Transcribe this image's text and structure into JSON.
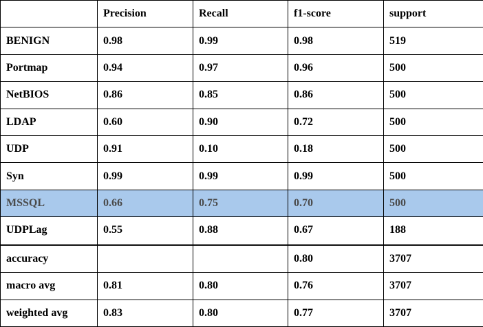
{
  "header": {
    "label": "",
    "precision": "Precision",
    "recall": "Recall",
    "f1": "f1-score",
    "support": "support"
  },
  "rows": [
    {
      "label": "BENIGN",
      "precision": "0.98",
      "recall": "0.99",
      "f1": "0.98",
      "support": "519"
    },
    {
      "label": "Portmap",
      "precision": "0.94",
      "recall": "0.97",
      "f1": "0.96",
      "support": "500"
    },
    {
      "label": "NetBIOS",
      "precision": "0.86",
      "recall": "0.85",
      "f1": "0.86",
      "support": "500"
    },
    {
      "label": "LDAP",
      "precision": "0.60",
      "recall": "0.90",
      "f1": "0.72",
      "support": "500"
    },
    {
      "label": "UDP",
      "precision": "0.91",
      "recall": "0.10",
      "f1": "0.18",
      "support": "500"
    },
    {
      "label": "Syn",
      "precision": "0.99",
      "recall": "0.99",
      "f1": "0.99",
      "support": "500"
    },
    {
      "label": "MSSQL",
      "precision": "0.66",
      "recall": "0.75",
      "f1": "0.70",
      "support": "500",
      "highlighted": true
    },
    {
      "label": "UDPLag",
      "precision": "0.55",
      "recall": "0.88",
      "f1": "0.67",
      "support": "188"
    },
    {
      "label": "",
      "precision": "",
      "recall": "",
      "f1": "",
      "support": ""
    },
    {
      "label": "accuracy",
      "precision": "",
      "recall": "",
      "f1": "0.80",
      "support": "3707"
    },
    {
      "label": "macro avg",
      "precision": "0.81",
      "recall": "0.80",
      "f1": "0.76",
      "support": "3707"
    },
    {
      "label": "weighted avg",
      "precision": "0.83",
      "recall": "0.80",
      "f1": "0.77",
      "support": "3707"
    }
  ],
  "highlight_color": "#a9c9ec"
}
